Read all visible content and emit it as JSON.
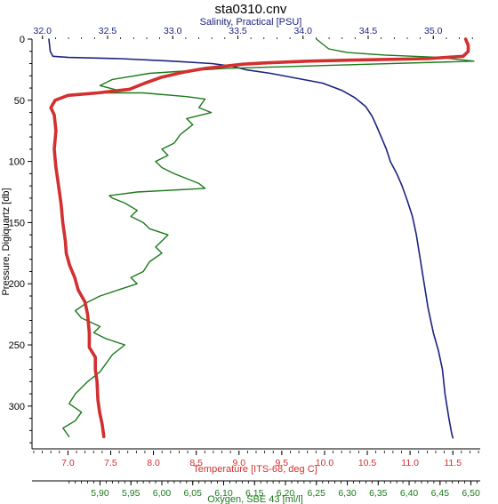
{
  "chart_data": {
    "type": "line",
    "title": "sta0310.cnv",
    "y_axis": {
      "label": "Pressure, Digiquartz [db]",
      "range": [
        0,
        335
      ],
      "inverted": true,
      "ticks": [
        "0",
        "50",
        "100",
        "150",
        "200",
        "250",
        "300"
      ],
      "tick_values": [
        0,
        50,
        100,
        150,
        200,
        250,
        300
      ]
    },
    "x_axes": [
      {
        "id": "salinity",
        "label": "Salinity, Practical [PSU]",
        "position": "top",
        "color": "#1a237e",
        "range": [
          31.92,
          35.36
        ],
        "ticks": [
          "32.0",
          "32.5",
          "33.0",
          "33.5",
          "34.0",
          "34.5",
          "35.0"
        ],
        "tick_values": [
          32.0,
          32.5,
          33.0,
          33.5,
          34.0,
          34.5,
          35.0
        ]
      },
      {
        "id": "temperature",
        "label": "Temperature [ITS-68, deg C]",
        "position": "bottom",
        "color": "#d32f2f",
        "range": [
          6.58,
          11.82
        ],
        "ticks": [
          "7.0",
          "7.5",
          "8.0",
          "8.5",
          "9.0",
          "9.5",
          "10.0",
          "10.5",
          "11.0",
          "11.5"
        ],
        "tick_values": [
          7.0,
          7.5,
          8.0,
          8.5,
          9.0,
          9.5,
          10.0,
          10.5,
          11.0,
          11.5
        ]
      },
      {
        "id": "oxygen",
        "label": "Oxygen, SBE 43 [ml/l]",
        "position": "bottom",
        "color": "#1b7a1b",
        "range": [
          5.79,
          6.515
        ],
        "ticks": [
          "5,90",
          "5,95",
          "6,00",
          "6,05",
          "6,10",
          "6,15",
          "6,20",
          "6,25",
          "6,30",
          "6,35",
          "6,40",
          "6,45",
          "6,50"
        ],
        "tick_values": [
          5.9,
          5.95,
          6.0,
          6.05,
          6.1,
          6.15,
          6.2,
          6.25,
          6.3,
          6.35,
          6.4,
          6.45,
          6.5
        ]
      }
    ],
    "grid": false,
    "legend": "none",
    "series": [
      {
        "name": "Salinity, Practical [PSU]",
        "axis": "salinity",
        "color": "#1a237e",
        "points": [
          [
            32.05,
            0
          ],
          [
            32.06,
            10
          ],
          [
            32.08,
            14
          ],
          [
            32.2,
            15
          ],
          [
            32.6,
            16
          ],
          [
            33.0,
            18
          ],
          [
            33.3,
            20
          ],
          [
            33.45,
            22
          ],
          [
            33.56,
            25
          ],
          [
            33.75,
            28
          ],
          [
            33.95,
            32
          ],
          [
            34.15,
            36
          ],
          [
            34.3,
            42
          ],
          [
            34.4,
            48
          ],
          [
            34.48,
            55
          ],
          [
            34.53,
            63
          ],
          [
            34.56,
            70
          ],
          [
            34.6,
            80
          ],
          [
            34.64,
            90
          ],
          [
            34.67,
            100
          ],
          [
            34.72,
            110
          ],
          [
            34.76,
            120
          ],
          [
            34.8,
            132
          ],
          [
            34.84,
            145
          ],
          [
            34.87,
            160
          ],
          [
            34.9,
            180
          ],
          [
            34.93,
            200
          ],
          [
            34.96,
            220
          ],
          [
            35.0,
            240
          ],
          [
            35.04,
            255
          ],
          [
            35.07,
            270
          ],
          [
            35.09,
            290
          ],
          [
            35.12,
            310
          ],
          [
            35.14,
            322
          ],
          [
            35.15,
            326
          ]
        ]
      },
      {
        "name": "Temperature [ITS-68, deg C]",
        "axis": "temperature",
        "color": "#d32f2f",
        "points": [
          [
            11.65,
            0
          ],
          [
            11.68,
            5
          ],
          [
            11.68,
            10
          ],
          [
            11.62,
            14
          ],
          [
            11.2,
            16
          ],
          [
            10.4,
            17
          ],
          [
            9.8,
            18
          ],
          [
            9.3,
            19.5
          ],
          [
            9.05,
            20.5
          ],
          [
            8.85,
            22
          ],
          [
            8.6,
            24
          ],
          [
            8.35,
            27
          ],
          [
            8.1,
            31
          ],
          [
            7.9,
            36
          ],
          [
            7.72,
            41
          ],
          [
            7.35,
            44
          ],
          [
            7.0,
            46
          ],
          [
            6.85,
            50
          ],
          [
            6.8,
            56
          ],
          [
            6.84,
            62
          ],
          [
            6.86,
            75
          ],
          [
            6.84,
            90
          ],
          [
            6.86,
            105
          ],
          [
            6.88,
            115
          ],
          [
            6.9,
            125
          ],
          [
            6.92,
            135
          ],
          [
            6.94,
            150
          ],
          [
            6.97,
            165
          ],
          [
            6.98,
            175
          ],
          [
            7.02,
            185
          ],
          [
            7.08,
            195
          ],
          [
            7.12,
            205
          ],
          [
            7.2,
            215
          ],
          [
            7.23,
            225
          ],
          [
            7.25,
            240
          ],
          [
            7.25,
            252
          ],
          [
            7.32,
            260
          ],
          [
            7.32,
            270
          ],
          [
            7.34,
            280
          ],
          [
            7.35,
            295
          ],
          [
            7.37,
            305
          ],
          [
            7.4,
            315
          ],
          [
            7.42,
            325
          ]
        ]
      },
      {
        "name": "Oxygen, SBE 43 [ml/l]",
        "axis": "oxygen",
        "color": "#1b7a1b",
        "points": [
          [
            6.25,
            0
          ],
          [
            6.26,
            4
          ],
          [
            6.27,
            8
          ],
          [
            6.3,
            11
          ],
          [
            6.36,
            13
          ],
          [
            6.45,
            15
          ],
          [
            6.505,
            18
          ],
          [
            6.3,
            21
          ],
          [
            6.1,
            24
          ],
          [
            5.98,
            28
          ],
          [
            5.92,
            33
          ],
          [
            5.9,
            38
          ],
          [
            5.93,
            42
          ],
          [
            5.91,
            44
          ],
          [
            5.97,
            44
          ],
          [
            6.04,
            47
          ],
          [
            6.07,
            49
          ],
          [
            6.06,
            56
          ],
          [
            6.08,
            60
          ],
          [
            6.04,
            65
          ],
          [
            6.05,
            70
          ],
          [
            6.03,
            78
          ],
          [
            6.02,
            85
          ],
          [
            6.0,
            90
          ],
          [
            6.01,
            95
          ],
          [
            5.99,
            100
          ],
          [
            6.0,
            105
          ],
          [
            6.02,
            110
          ],
          [
            6.04,
            114
          ],
          [
            6.06,
            118
          ],
          [
            6.07,
            122
          ],
          [
            5.96,
            125
          ],
          [
            5.915,
            128
          ],
          [
            5.92,
            130
          ],
          [
            5.94,
            134
          ],
          [
            5.96,
            140
          ],
          [
            5.95,
            145
          ],
          [
            5.97,
            150
          ],
          [
            5.98,
            155
          ],
          [
            6.01,
            160
          ],
          [
            6.0,
            165
          ],
          [
            5.99,
            170
          ],
          [
            6.0,
            175
          ],
          [
            5.98,
            182
          ],
          [
            5.97,
            190
          ],
          [
            5.95,
            195
          ],
          [
            5.96,
            200
          ],
          [
            5.93,
            205
          ],
          [
            5.9,
            210
          ],
          [
            5.88,
            215
          ],
          [
            5.86,
            222
          ],
          [
            5.87,
            228
          ],
          [
            5.9,
            235
          ],
          [
            5.89,
            240
          ],
          [
            5.91,
            245
          ],
          [
            5.94,
            250
          ],
          [
            5.92,
            258
          ],
          [
            5.91,
            265
          ],
          [
            5.9,
            272
          ],
          [
            5.88,
            280
          ],
          [
            5.86,
            290
          ],
          [
            5.85,
            298
          ],
          [
            5.87,
            305
          ],
          [
            5.86,
            312
          ],
          [
            5.84,
            318
          ],
          [
            5.85,
            325
          ]
        ]
      }
    ]
  }
}
